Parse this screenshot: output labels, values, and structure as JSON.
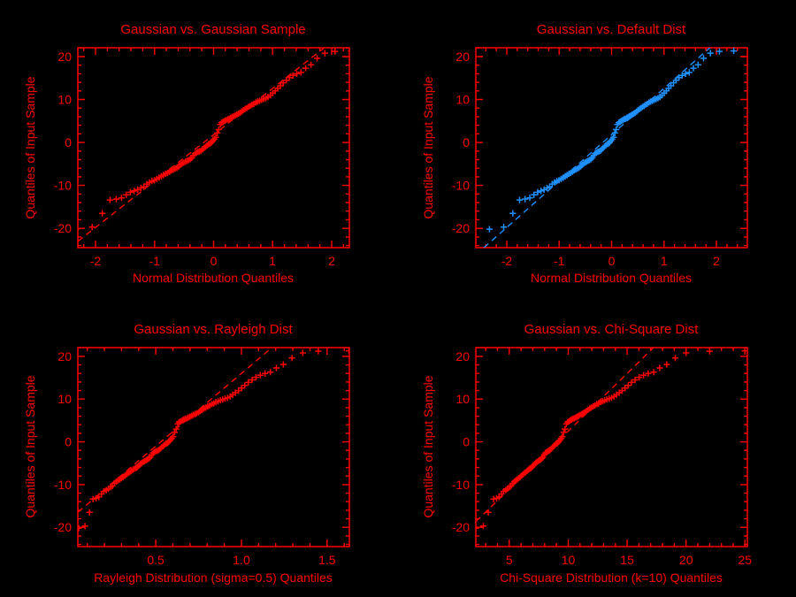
{
  "figure": {
    "background": "#000000",
    "axis_color": "#ff0000",
    "sample_sorted": [
      -20.2,
      -19.7,
      -16.5,
      -13.4,
      -13.2,
      -12.9,
      -12.2,
      -11.6,
      -11.3,
      -11.0,
      -10.6,
      -10.3,
      -9.7,
      -9.3,
      -9.0,
      -8.8,
      -8.5,
      -8.2,
      -7.9,
      -7.6,
      -7.3,
      -7.1,
      -6.8,
      -6.5,
      -6.3,
      -6.1,
      -5.9,
      -5.6,
      -5.2,
      -4.9,
      -4.7,
      -4.5,
      -4.3,
      -4.1,
      -3.9,
      -3.6,
      -3.0,
      -2.6,
      -2.4,
      -2.2,
      -2.1,
      -1.9,
      -1.6,
      -1.3,
      -1.0,
      -0.7,
      -0.4,
      -0.3,
      0.0,
      0.4,
      0.8,
      1.2,
      2.2,
      3.0,
      4.2,
      4.6,
      4.8,
      5.0,
      5.2,
      5.4,
      5.5,
      5.7,
      5.9,
      6.1,
      6.3,
      6.5,
      6.7,
      6.9,
      7.2,
      7.5,
      7.8,
      8.0,
      8.3,
      8.5,
      8.8,
      9.0,
      9.3,
      9.5,
      9.7,
      9.9,
      10.1,
      10.3,
      10.6,
      11.0,
      11.5,
      12.0,
      12.6,
      13.2,
      13.9,
      14.5,
      15.1,
      15.6,
      16.0,
      16.3,
      17.3,
      18.1,
      19.6,
      20.8,
      21.2,
      21.3
    ]
  },
  "chart_data": [
    {
      "type": "scatter",
      "subtype": "qq-plot",
      "title": "Gaussian vs. Gaussian Sample",
      "xlabel": "Normal Distribution Quantiles",
      "ylabel": "Quantiles of Input Sample",
      "color": "#ff0000",
      "marker": "plus",
      "grid": false,
      "legend": null,
      "xlim": [
        -2.3,
        2.3
      ],
      "ylim": [
        -24.5,
        22.05
      ],
      "xticks": {
        "major": [
          -2,
          -1,
          0,
          1,
          2
        ],
        "labels": [
          "-2",
          "-1",
          "0",
          "1",
          "2"
        ],
        "minor_step": 0.2
      },
      "yticks": {
        "major": [
          -20,
          -10,
          0,
          10,
          20
        ],
        "labels": [
          "-20",
          "-10",
          "0",
          "10",
          "20"
        ],
        "minor_step": 2
      },
      "ref_line": {
        "slope": 10.8,
        "intercept": 1.8,
        "style": "dashed"
      },
      "y_source": "sample_sorted",
      "x": [
        -2.33,
        -2.058,
        -1.885,
        -1.755,
        -1.65,
        -1.56,
        -1.481,
        -1.41,
        -1.346,
        -1.287,
        -1.232,
        -1.181,
        -1.133,
        -1.087,
        -1.044,
        -1.002,
        -0.962,
        -0.923,
        -0.885,
        -0.849,
        -0.813,
        -0.779,
        -0.746,
        -0.714,
        -0.682,
        -0.651,
        -0.621,
        -0.591,
        -0.562,
        -0.533,
        -0.505,
        -0.477,
        -0.449,
        -0.422,
        -0.395,
        -0.368,
        -0.341,
        -0.315,
        -0.289,
        -0.263,
        -0.238,
        -0.212,
        -0.187,
        -0.162,
        -0.137,
        -0.112,
        -0.087,
        -0.062,
        -0.037,
        -0.012,
        0.012,
        0.037,
        0.062,
        0.087,
        0.112,
        0.137,
        0.162,
        0.187,
        0.212,
        0.238,
        0.263,
        0.289,
        0.315,
        0.341,
        0.368,
        0.395,
        0.422,
        0.449,
        0.477,
        0.505,
        0.533,
        0.562,
        0.591,
        0.621,
        0.651,
        0.682,
        0.714,
        0.746,
        0.779,
        0.813,
        0.849,
        0.885,
        0.923,
        0.962,
        1.002,
        1.044,
        1.087,
        1.133,
        1.181,
        1.232,
        1.287,
        1.346,
        1.41,
        1.481,
        1.56,
        1.65,
        1.755,
        1.885,
        2.058,
        2.33
      ]
    },
    {
      "type": "scatter",
      "subtype": "qq-plot",
      "title": "Gaussian vs. Default Dist",
      "xlabel": "Normal Distribution Quantiles",
      "ylabel": "Quantiles of Input Sample",
      "color": "#1e90ff",
      "marker": "plus",
      "grid": false,
      "legend": null,
      "xlim": [
        -2.59,
        2.59
      ],
      "ylim": [
        -24.5,
        22.05
      ],
      "xticks": {
        "major": [
          -2,
          -1,
          0,
          1,
          2
        ],
        "labels": [
          "-2",
          "-1",
          "0",
          "1",
          "2"
        ],
        "minor_step": 0.2
      },
      "yticks": {
        "major": [
          -20,
          -10,
          0,
          10,
          20
        ],
        "labels": [
          "-20",
          "-10",
          "0",
          "10",
          "20"
        ],
        "minor_step": 2
      },
      "ref_line": {
        "slope": 10.8,
        "intercept": 1.8,
        "style": "dashed"
      },
      "y_source": "sample_sorted",
      "x": [
        -2.33,
        -2.058,
        -1.885,
        -1.755,
        -1.65,
        -1.56,
        -1.481,
        -1.41,
        -1.346,
        -1.287,
        -1.232,
        -1.181,
        -1.133,
        -1.087,
        -1.044,
        -1.002,
        -0.962,
        -0.923,
        -0.885,
        -0.849,
        -0.813,
        -0.779,
        -0.746,
        -0.714,
        -0.682,
        -0.651,
        -0.621,
        -0.591,
        -0.562,
        -0.533,
        -0.505,
        -0.477,
        -0.449,
        -0.422,
        -0.395,
        -0.368,
        -0.341,
        -0.315,
        -0.289,
        -0.263,
        -0.238,
        -0.212,
        -0.187,
        -0.162,
        -0.137,
        -0.112,
        -0.087,
        -0.062,
        -0.037,
        -0.012,
        0.012,
        0.037,
        0.062,
        0.087,
        0.112,
        0.137,
        0.162,
        0.187,
        0.212,
        0.238,
        0.263,
        0.289,
        0.315,
        0.341,
        0.368,
        0.395,
        0.422,
        0.449,
        0.477,
        0.505,
        0.533,
        0.562,
        0.591,
        0.621,
        0.651,
        0.682,
        0.714,
        0.746,
        0.779,
        0.813,
        0.849,
        0.885,
        0.923,
        0.962,
        1.002,
        1.044,
        1.087,
        1.133,
        1.181,
        1.232,
        1.287,
        1.346,
        1.41,
        1.481,
        1.56,
        1.65,
        1.755,
        1.885,
        2.058,
        2.33
      ]
    },
    {
      "type": "scatter",
      "subtype": "qq-plot",
      "title": "Gaussian vs. Rayleigh Dist",
      "xlabel": "Rayleigh Distribution (sigma=0.5) Quantiles",
      "ylabel": "Quantiles of Input Sample",
      "color": "#ff0000",
      "marker": "plus",
      "grid": false,
      "legend": null,
      "xlim": [
        0.045,
        1.63
      ],
      "ylim": [
        -24.5,
        22.05
      ],
      "xticks": {
        "major": [
          0.5,
          1.0,
          1.5
        ],
        "labels": [
          "0.5",
          "1.0",
          "1.5"
        ],
        "minor_step": 0.1
      },
      "yticks": {
        "major": [
          -20,
          -10,
          0,
          10,
          20
        ],
        "labels": [
          "-20",
          "-10",
          "0",
          "10",
          "20"
        ],
        "minor_step": 2
      },
      "ref_line": {
        "slope": 34.0,
        "intercept": -18.0,
        "style": "dashed"
      },
      "y_source": "sample_sorted",
      "x": [
        0.05,
        0.087,
        0.113,
        0.134,
        0.152,
        0.168,
        0.183,
        0.197,
        0.211,
        0.223,
        0.236,
        0.247,
        0.258,
        0.269,
        0.28,
        0.29,
        0.3,
        0.31,
        0.32,
        0.329,
        0.339,
        0.348,
        0.357,
        0.366,
        0.375,
        0.384,
        0.392,
        0.401,
        0.41,
        0.418,
        0.427,
        0.435,
        0.443,
        0.452,
        0.46,
        0.468,
        0.477,
        0.485,
        0.493,
        0.501,
        0.51,
        0.518,
        0.526,
        0.534,
        0.543,
        0.551,
        0.559,
        0.568,
        0.576,
        0.584,
        0.593,
        0.601,
        0.61,
        0.619,
        0.628,
        0.636,
        0.645,
        0.654,
        0.663,
        0.672,
        0.682,
        0.691,
        0.7,
        0.71,
        0.72,
        0.73,
        0.739,
        0.75,
        0.76,
        0.771,
        0.781,
        0.792,
        0.803,
        0.815,
        0.827,
        0.839,
        0.851,
        0.864,
        0.877,
        0.89,
        0.904,
        0.919,
        0.934,
        0.949,
        0.965,
        0.983,
        1.001,
        1.02,
        1.04,
        1.062,
        1.085,
        1.11,
        1.138,
        1.169,
        1.204,
        1.245,
        1.295,
        1.358,
        1.449,
        1.628
      ]
    },
    {
      "type": "scatter",
      "subtype": "qq-plot",
      "title": "Gaussian vs. Chi-Square Dist",
      "xlabel": "Chi-Square Distribution (k=10) Quantiles",
      "ylabel": "Quantiles of Input Sample",
      "color": "#ff0000",
      "marker": "plus",
      "grid": false,
      "legend": null,
      "xlim": [
        2.16,
        25.2
      ],
      "ylim": [
        -24.5,
        22.05
      ],
      "xticks": {
        "major": [
          5,
          10,
          15,
          20,
          25
        ],
        "labels": [
          "5",
          "10",
          "15",
          "20",
          "25"
        ],
        "minor_step": 1
      },
      "yticks": {
        "major": [
          -20,
          -10,
          0,
          10,
          20
        ],
        "labels": [
          "-20",
          "-10",
          "0",
          "10",
          "20"
        ],
        "minor_step": 2
      },
      "ref_line": {
        "slope": 2.7,
        "intercept": -24.5,
        "style": "dashed"
      },
      "y_source": "sample_sorted",
      "x": [
        2.16,
        2.8,
        3.22,
        3.67,
        3.92,
        4.14,
        4.34,
        4.52,
        4.69,
        4.85,
        5.01,
        5.15,
        5.29,
        5.43,
        5.56,
        5.69,
        5.81,
        5.93,
        6.05,
        6.17,
        6.29,
        6.4,
        6.51,
        6.62,
        6.72,
        6.83,
        6.94,
        7.04,
        7.14,
        7.25,
        7.35,
        7.45,
        7.56,
        7.66,
        7.76,
        7.86,
        7.96,
        8.06,
        8.16,
        8.27,
        8.36,
        8.47,
        8.57,
        8.67,
        8.77,
        8.88,
        8.98,
        9.08,
        9.19,
        9.3,
        9.4,
        9.51,
        9.62,
        9.73,
        9.84,
        9.95,
        10.06,
        10.17,
        10.28,
        10.4,
        10.52,
        10.64,
        10.76,
        10.88,
        11.01,
        11.14,
        11.27,
        11.4,
        11.54,
        11.68,
        11.82,
        11.96,
        12.11,
        12.26,
        12.42,
        12.58,
        12.75,
        12.92,
        13.09,
        13.28,
        13.47,
        13.67,
        13.88,
        14.1,
        14.33,
        14.57,
        14.82,
        15.09,
        15.37,
        15.68,
        16.02,
        16.39,
        16.79,
        17.25,
        17.76,
        18.36,
        19.08,
        20.0,
        22.0,
        25.0
      ]
    }
  ]
}
